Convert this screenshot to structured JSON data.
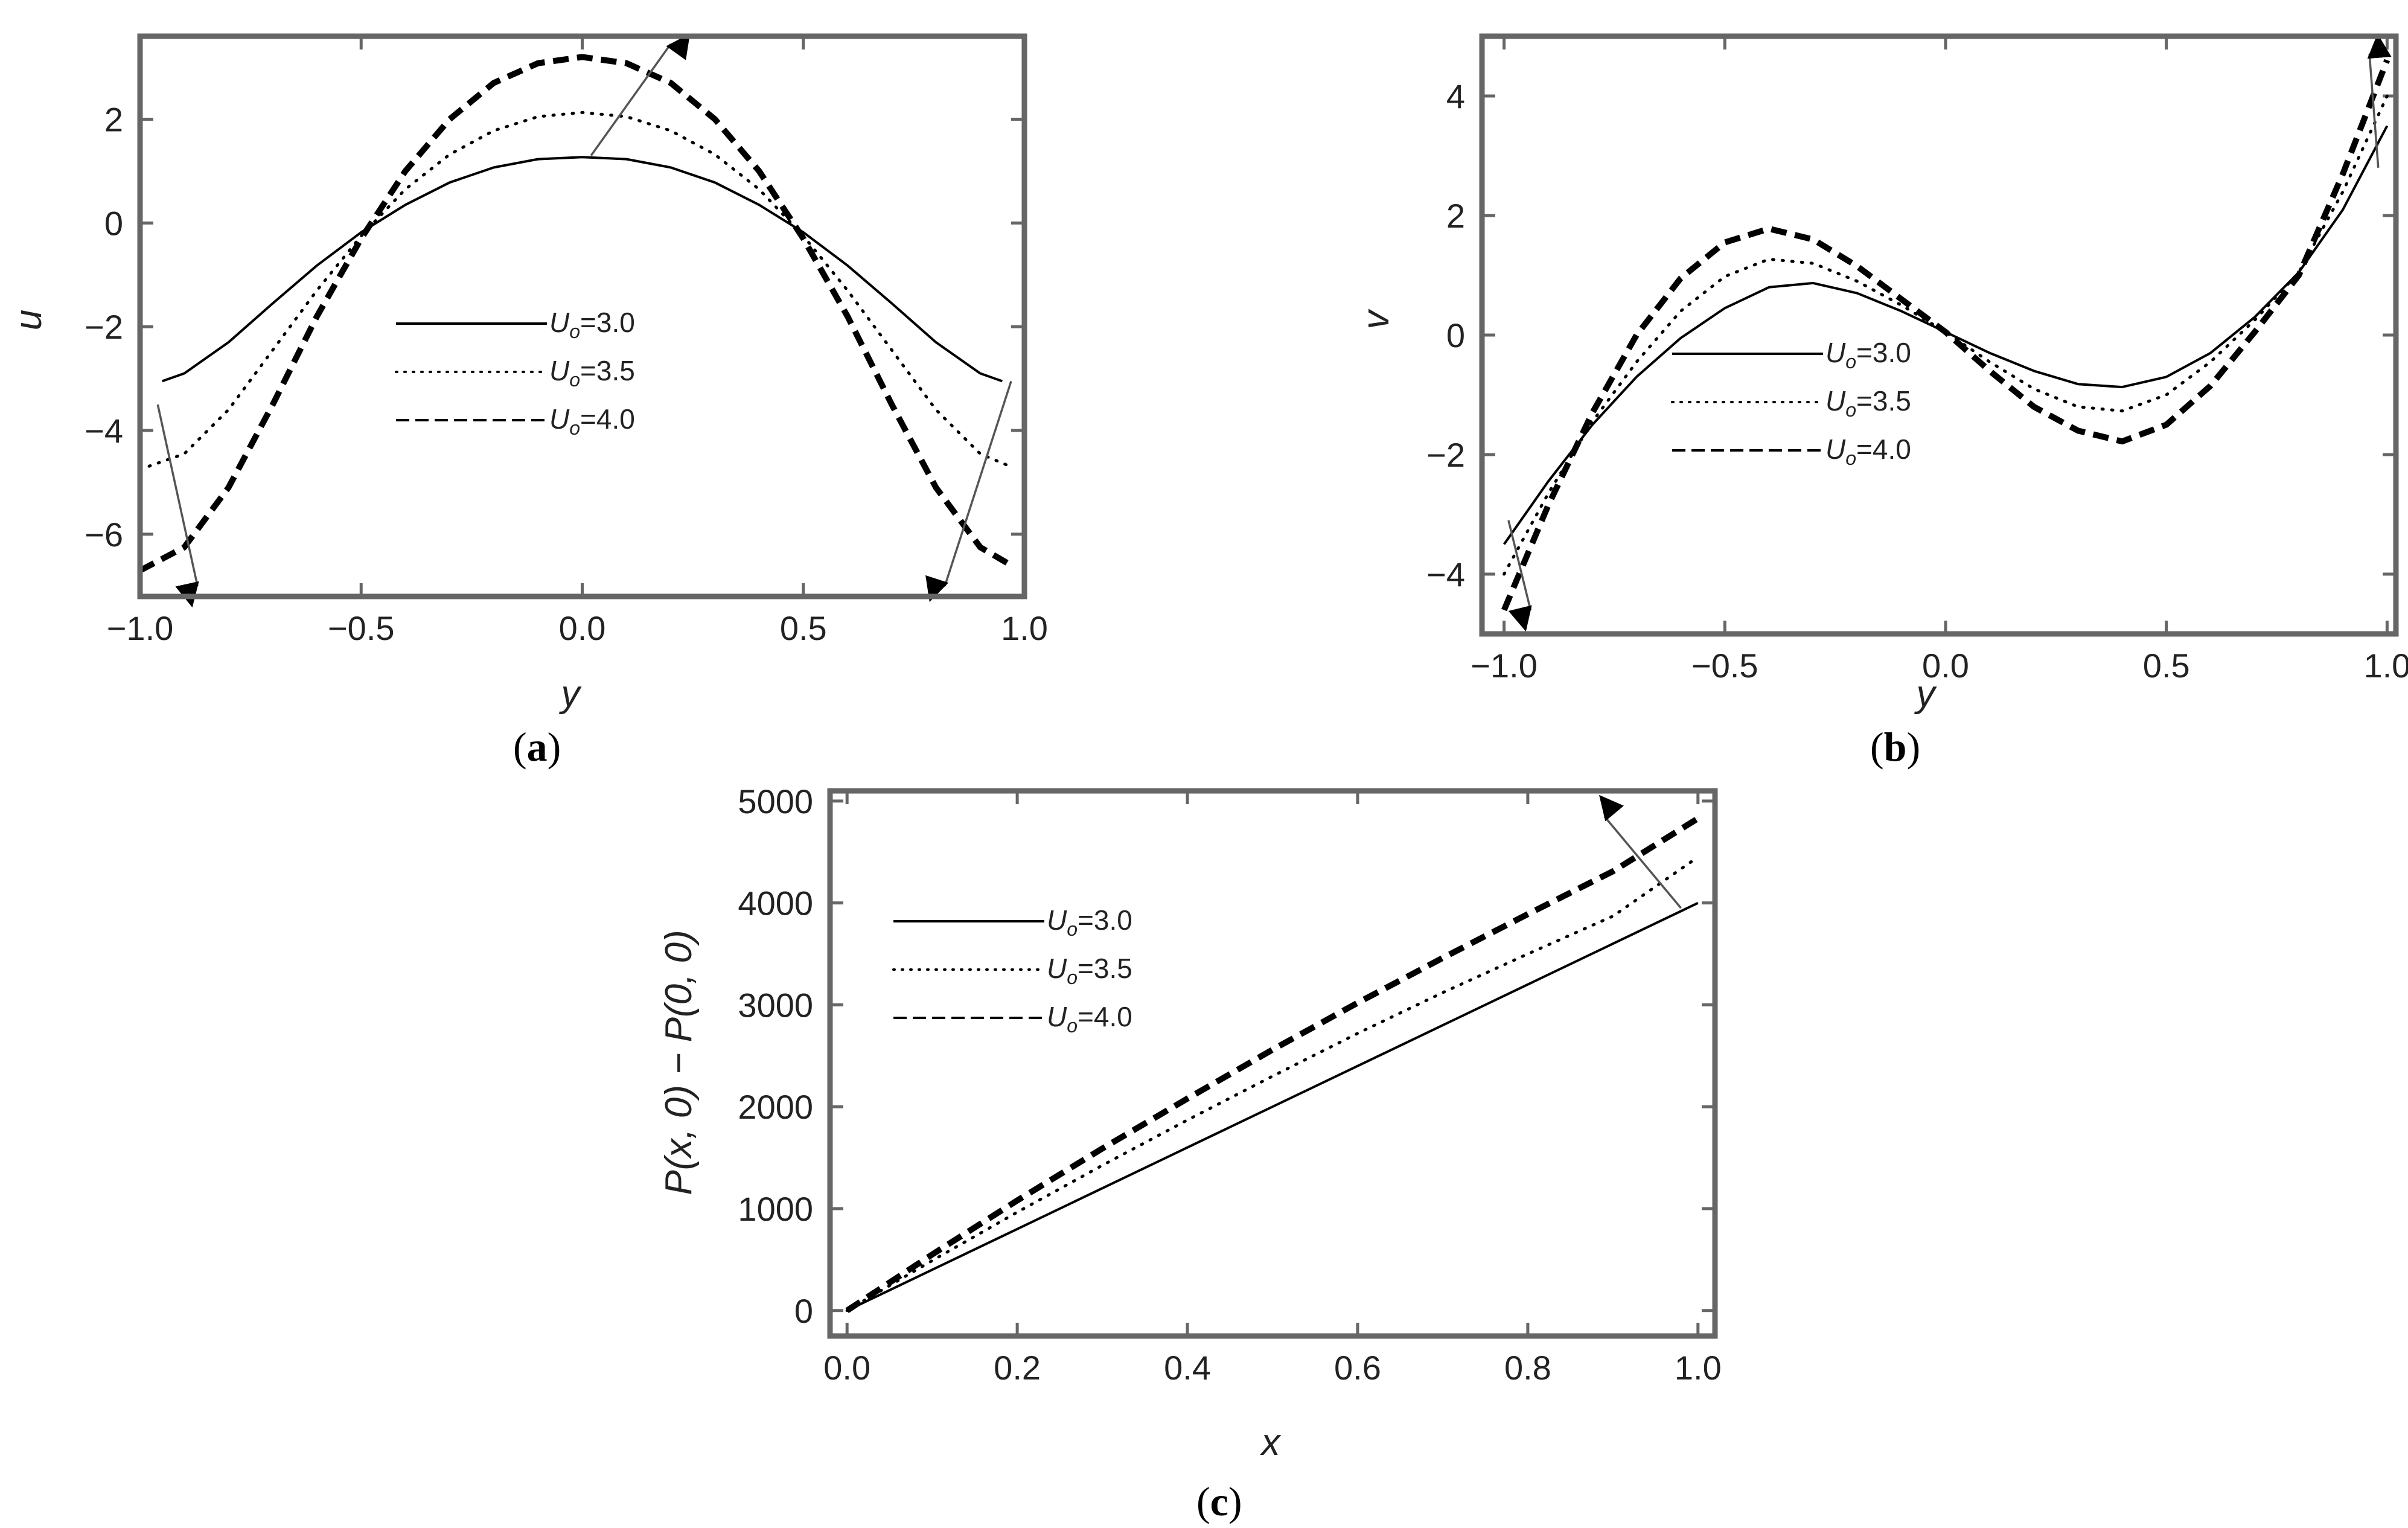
{
  "chart_data": [
    {
      "panel": "a",
      "type": "line",
      "caption_letter": "a",
      "xlabel": "y",
      "ylabel": "u",
      "xlim": [
        -1.0,
        1.0
      ],
      "ylim": [
        -7.2,
        3.6
      ],
      "xticks": [
        "−1.0",
        "−0.5",
        "0.0",
        "0.5",
        "1.0"
      ],
      "xtick_values": [
        -1.0,
        -0.5,
        0.0,
        0.5,
        1.0
      ],
      "yticks": [
        "2",
        "0",
        "−2",
        "−4",
        "−6"
      ],
      "ytick_values": [
        2,
        0,
        -2,
        -4,
        -6
      ],
      "legend_position": "center-left",
      "series": [
        {
          "name": "U",
          "sub": "o",
          "value_label": "=3.0",
          "style": "solid",
          "x": [
            -0.95,
            -0.9,
            -0.8,
            -0.7,
            -0.6,
            -0.5,
            -0.4,
            -0.3,
            -0.2,
            -0.1,
            0.0,
            0.1,
            0.2,
            0.3,
            0.4,
            0.5,
            0.6,
            0.7,
            0.8,
            0.9,
            0.95
          ],
          "y": [
            -3.05,
            -2.9,
            -2.3,
            -1.55,
            -0.82,
            -0.18,
            0.35,
            0.78,
            1.07,
            1.23,
            1.27,
            1.23,
            1.07,
            0.78,
            0.35,
            -0.18,
            -0.82,
            -1.55,
            -2.3,
            -2.9,
            -3.05
          ]
        },
        {
          "name": "U",
          "sub": "o",
          "value_label": "=3.5",
          "style": "dotted",
          "x": [
            -1.0,
            -0.9,
            -0.8,
            -0.7,
            -0.6,
            -0.5,
            -0.4,
            -0.3,
            -0.2,
            -0.1,
            0.0,
            0.1,
            0.2,
            0.3,
            0.4,
            0.5,
            0.6,
            0.7,
            0.8,
            0.9,
            0.97
          ],
          "y": [
            -4.75,
            -4.45,
            -3.6,
            -2.45,
            -1.3,
            -0.25,
            0.65,
            1.32,
            1.78,
            2.05,
            2.13,
            2.05,
            1.78,
            1.32,
            0.65,
            -0.25,
            -1.3,
            -2.45,
            -3.6,
            -4.45,
            -4.7
          ]
        },
        {
          "name": "U",
          "sub": "o",
          "value_label": "=4.0",
          "style": "dashed",
          "x": [
            -1.0,
            -0.9,
            -0.8,
            -0.7,
            -0.6,
            -0.5,
            -0.4,
            -0.3,
            -0.2,
            -0.1,
            0.0,
            0.1,
            0.2,
            0.3,
            0.4,
            0.5,
            0.6,
            0.7,
            0.8,
            0.9,
            0.97
          ],
          "y": [
            -6.7,
            -6.25,
            -5.1,
            -3.5,
            -1.8,
            -0.3,
            1.0,
            2.0,
            2.7,
            3.08,
            3.2,
            3.08,
            2.7,
            2.0,
            1.0,
            -0.3,
            -1.8,
            -3.5,
            -5.1,
            -6.25,
            -6.6
          ]
        }
      ],
      "arrows": [
        {
          "from": [
            0.02,
            1.3
          ],
          "to": [
            0.2,
            3.45
          ]
        },
        {
          "from": [
            -0.96,
            -3.5
          ],
          "to": [
            -0.87,
            -7.0
          ]
        },
        {
          "from": [
            0.97,
            -3.05
          ],
          "to": [
            0.82,
            -7.0
          ]
        }
      ]
    },
    {
      "panel": "b",
      "type": "line",
      "caption_letter": "b",
      "xlabel": "y",
      "ylabel": "v",
      "xlim": [
        -1.05,
        1.02
      ],
      "ylim": [
        -5.0,
        5.0
      ],
      "xticks": [
        "−1.0",
        "−0.5",
        "0.0",
        "0.5",
        "1.0"
      ],
      "xtick_values": [
        -1.0,
        -0.5,
        0.0,
        0.5,
        1.0
      ],
      "yticks": [
        "4",
        "2",
        "0",
        "−2",
        "−4"
      ],
      "ytick_values": [
        4,
        2,
        0,
        -2,
        -4
      ],
      "legend_position": "center",
      "series": [
        {
          "name": "U",
          "sub": "o",
          "value_label": "=3.0",
          "style": "solid",
          "x": [
            -1.0,
            -0.9,
            -0.8,
            -0.7,
            -0.6,
            -0.5,
            -0.4,
            -0.3,
            -0.2,
            -0.1,
            0.0,
            0.1,
            0.2,
            0.3,
            0.4,
            0.5,
            0.6,
            0.7,
            0.8,
            0.9,
            1.0
          ],
          "y": [
            -3.5,
            -2.45,
            -1.5,
            -0.7,
            -0.05,
            0.45,
            0.8,
            0.87,
            0.7,
            0.4,
            0.05,
            -0.3,
            -0.6,
            -0.82,
            -0.87,
            -0.7,
            -0.3,
            0.3,
            1.05,
            2.1,
            3.5
          ]
        },
        {
          "name": "U",
          "sub": "o",
          "value_label": "=3.5",
          "style": "dotted",
          "x": [
            -1.0,
            -0.9,
            -0.8,
            -0.7,
            -0.6,
            -0.5,
            -0.4,
            -0.3,
            -0.2,
            -0.1,
            0.0,
            0.1,
            0.2,
            0.3,
            0.4,
            0.5,
            0.6,
            0.7,
            0.8,
            0.9,
            1.0
          ],
          "y": [
            -4.0,
            -2.65,
            -1.45,
            -0.45,
            0.4,
            0.98,
            1.27,
            1.2,
            0.9,
            0.5,
            0.05,
            -0.45,
            -0.9,
            -1.2,
            -1.27,
            -1.0,
            -0.45,
            0.25,
            1.05,
            2.4,
            4.0
          ]
        },
        {
          "name": "U",
          "sub": "o",
          "value_label": "=4.0",
          "style": "dashed",
          "x": [
            -1.0,
            -0.9,
            -0.8,
            -0.7,
            -0.6,
            -0.5,
            -0.4,
            -0.3,
            -0.2,
            -0.1,
            0.0,
            0.1,
            0.2,
            0.3,
            0.4,
            0.5,
            0.6,
            0.7,
            0.8,
            0.9,
            1.0
          ],
          "y": [
            -4.6,
            -2.85,
            -1.3,
            0.0,
            0.95,
            1.55,
            1.78,
            1.6,
            1.15,
            0.6,
            0.05,
            -0.6,
            -1.2,
            -1.6,
            -1.78,
            -1.5,
            -0.85,
            0.05,
            1.0,
            2.7,
            4.6
          ]
        }
      ],
      "arrows": [
        {
          "from": [
            0.98,
            2.8
          ],
          "to": [
            0.96,
            4.7
          ]
        },
        {
          "from": [
            -0.99,
            -3.1
          ],
          "to": [
            -0.94,
            -4.6
          ]
        }
      ]
    },
    {
      "panel": "c",
      "type": "line",
      "caption_letter": "c",
      "xlabel": "x",
      "ylabel": "P(x, 0) − P(0, 0)",
      "xlim": [
        -0.02,
        1.02
      ],
      "ylim": [
        -250,
        5100
      ],
      "xticks": [
        "0.0",
        "0.2",
        "0.4",
        "0.6",
        "0.8",
        "1.0"
      ],
      "xtick_values": [
        0.0,
        0.2,
        0.4,
        0.6,
        0.8,
        1.0
      ],
      "yticks": [
        "5000",
        "4000",
        "3000",
        "2000",
        "1000",
        "0"
      ],
      "ytick_values": [
        5000,
        4000,
        3000,
        2000,
        1000,
        0
      ],
      "legend_position": "upper-left",
      "series": [
        {
          "name": "U",
          "sub": "o",
          "value_label": "=3.0",
          "style": "solid",
          "x": [
            0.0,
            0.2,
            0.4,
            0.6,
            0.8,
            1.0
          ],
          "y": [
            0,
            800,
            1600,
            2400,
            3200,
            4000
          ]
        },
        {
          "name": "U",
          "sub": "o",
          "value_label": "=3.5",
          "style": "dotted",
          "x": [
            0.0,
            0.1,
            0.2,
            0.3,
            0.4,
            0.5,
            0.6,
            0.7,
            0.8,
            0.9,
            1.0
          ],
          "y": [
            0,
            490,
            965,
            1425,
            1870,
            2300,
            2720,
            3120,
            3500,
            3870,
            4450
          ]
        },
        {
          "name": "U",
          "sub": "o",
          "value_label": "=4.0",
          "style": "dashed",
          "x": [
            0.0,
            0.1,
            0.2,
            0.3,
            0.4,
            0.5,
            0.6,
            0.7,
            0.8,
            0.9,
            1.0
          ],
          "y": [
            0,
            550,
            1080,
            1590,
            2080,
            2560,
            3020,
            3460,
            3890,
            4310,
            4830
          ]
        }
      ],
      "arrows": [
        {
          "from": [
            0.98,
            3950
          ],
          "to": [
            0.89,
            4850
          ]
        }
      ]
    }
  ]
}
